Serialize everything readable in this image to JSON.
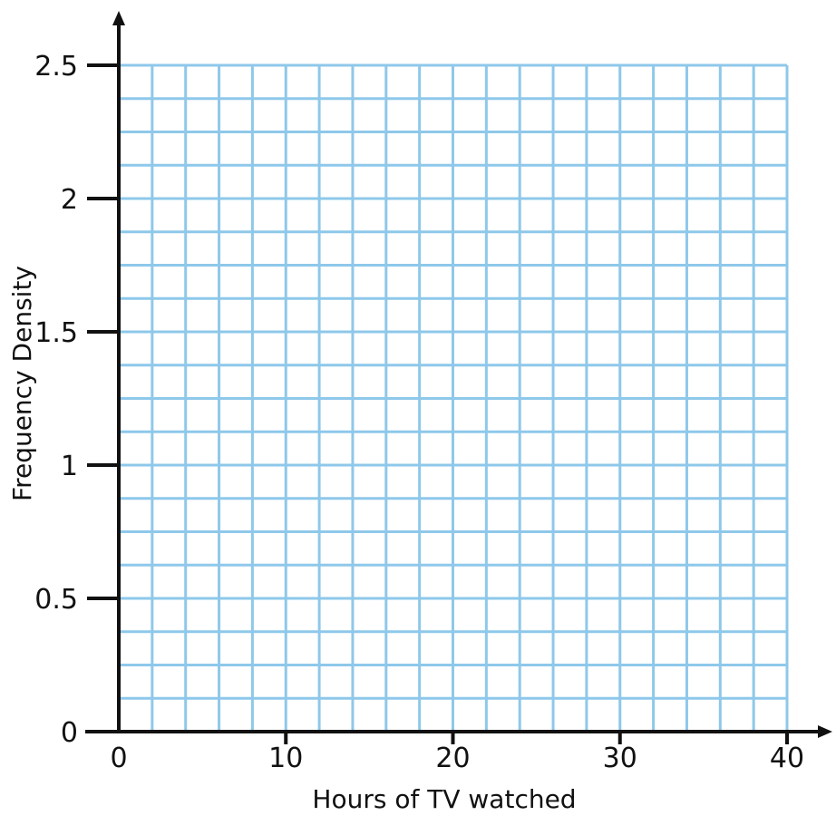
{
  "chart_data": {
    "type": "bar",
    "title": "",
    "xlabel": "Hours of TV watched",
    "ylabel": "Frequency Density",
    "xlim": [
      0,
      40
    ],
    "ylim": [
      0,
      2.5
    ],
    "x_ticks": [
      "0",
      "10",
      "20",
      "30",
      "40"
    ],
    "y_ticks": [
      "0",
      "0.5",
      "1",
      "1.5",
      "2",
      "2.5"
    ],
    "x_grid_step": 2,
    "y_grid_step": 0.125,
    "grid": true,
    "grid_color": "#8ec8ea",
    "axis_color": "#111111",
    "series": []
  }
}
